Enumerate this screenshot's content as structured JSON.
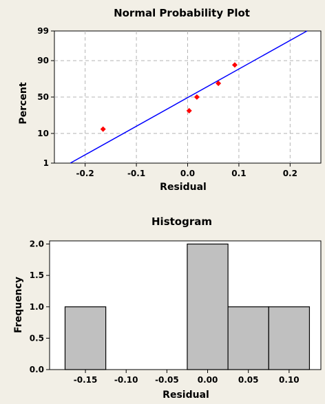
{
  "colors": {
    "background": "#f2efe6",
    "points": "#ff0000",
    "fit_line": "#0000ff",
    "bars": "#c0c0c0",
    "grid": "#b4b4b4"
  },
  "chart_data": [
    {
      "type": "scatter",
      "title": "Normal Probability Plot",
      "xlabel": "Residual",
      "ylabel": "Percent",
      "y_scale": "normal-probability",
      "grid": true,
      "xlim": [
        -0.26,
        0.26
      ],
      "ylim": [
        1,
        99
      ],
      "xticks": [
        -0.2,
        -0.1,
        0.0,
        0.1,
        0.2
      ],
      "xtick_labels": [
        "-0.2",
        "-0.1",
        "0.0",
        "0.1",
        "0.2"
      ],
      "yticks": [
        1,
        10,
        50,
        90,
        99
      ],
      "ytick_labels": [
        "1",
        "10",
        "50",
        "90",
        "99"
      ],
      "points": [
        {
          "x": -0.165,
          "y": 12.9
        },
        {
          "x": 0.003,
          "y": 31.5
        },
        {
          "x": 0.018,
          "y": 50.0
        },
        {
          "x": 0.06,
          "y": 68.5
        },
        {
          "x": 0.092,
          "y": 87.1
        }
      ],
      "fit_line": {
        "x": [
          -0.229,
          0.233
        ],
        "y": [
          1,
          99
        ]
      }
    },
    {
      "type": "bar",
      "title": "Histogram",
      "xlabel": "Residual",
      "ylabel": "Frequency",
      "grid": false,
      "xlim": [
        -0.194,
        0.139
      ],
      "ylim": [
        0,
        2.05
      ],
      "bin_width": 0.05,
      "bin_centers": [
        -0.15,
        -0.1,
        -0.05,
        0.0,
        0.05,
        0.1
      ],
      "values": [
        1,
        0,
        0,
        2,
        1,
        1
      ],
      "xticks": [
        -0.15,
        -0.1,
        -0.05,
        0.0,
        0.05,
        0.1
      ],
      "xtick_labels": [
        "-0.15",
        "-0.10",
        "-0.05",
        "0.00",
        "0.05",
        "0.10"
      ],
      "yticks": [
        0,
        0.5,
        1.0,
        1.5,
        2.0
      ],
      "ytick_labels": [
        "0.0",
        "0.5",
        "1.0",
        "1.5",
        "2.0"
      ]
    }
  ]
}
